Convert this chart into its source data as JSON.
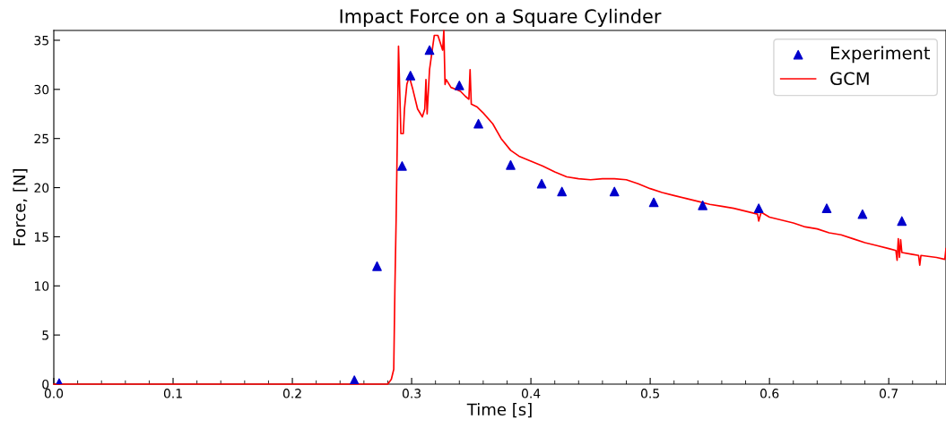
{
  "chart_data": {
    "type": "line",
    "title": "Impact Force on a Square Cylinder",
    "xlabel": "Time [s]",
    "ylabel": "Force, [N]",
    "xlim": [
      0,
      0.748
    ],
    "ylim": [
      0,
      36
    ],
    "xticks": [
      {
        "value": 0,
        "label": "0.0"
      },
      {
        "value": 0.02,
        "label": null
      },
      {
        "value": 0.04,
        "label": null
      },
      {
        "value": 0.06,
        "label": null
      },
      {
        "value": 0.08,
        "label": null
      },
      {
        "value": 0.1,
        "label": "0.1"
      },
      {
        "value": 0.12,
        "label": null
      },
      {
        "value": 0.14,
        "label": null
      },
      {
        "value": 0.16,
        "label": null
      },
      {
        "value": 0.18,
        "label": null
      },
      {
        "value": 0.2,
        "label": "0.2"
      },
      {
        "value": 0.22,
        "label": null
      },
      {
        "value": 0.24,
        "label": null
      },
      {
        "value": 0.26,
        "label": null
      },
      {
        "value": 0.28,
        "label": null
      },
      {
        "value": 0.3,
        "label": "0.3"
      },
      {
        "value": 0.32,
        "label": null
      },
      {
        "value": 0.34,
        "label": null
      },
      {
        "value": 0.36,
        "label": null
      },
      {
        "value": 0.38,
        "label": null
      },
      {
        "value": 0.4,
        "label": "0.4"
      },
      {
        "value": 0.42,
        "label": null
      },
      {
        "value": 0.44,
        "label": null
      },
      {
        "value": 0.46,
        "label": null
      },
      {
        "value": 0.48,
        "label": null
      },
      {
        "value": 0.5,
        "label": "0.5"
      },
      {
        "value": 0.52,
        "label": null
      },
      {
        "value": 0.54,
        "label": null
      },
      {
        "value": 0.56,
        "label": null
      },
      {
        "value": 0.58,
        "label": null
      },
      {
        "value": 0.6,
        "label": "0.6"
      },
      {
        "value": 0.62,
        "label": null
      },
      {
        "value": 0.64,
        "label": null
      },
      {
        "value": 0.66,
        "label": null
      },
      {
        "value": 0.68,
        "label": null
      },
      {
        "value": 0.7,
        "label": "0.7"
      },
      {
        "value": 0.72,
        "label": null
      },
      {
        "value": 0.74,
        "label": null
      }
    ],
    "yticks": [
      0,
      5,
      10,
      15,
      20,
      25,
      30,
      35
    ],
    "grid": false,
    "legend": "top right",
    "series": [
      {
        "name": "Experiment",
        "type": "scatter",
        "marker": "triangle",
        "color": "#0000cc",
        "x": [
          0.0045,
          0.252,
          0.271,
          0.292,
          0.299,
          0.315,
          0.34,
          0.356,
          0.383,
          0.409,
          0.426,
          0.47,
          0.503,
          0.544,
          0.591,
          0.648,
          0.678,
          0.711
        ],
        "values": [
          0.1,
          0.4,
          12.0,
          22.2,
          31.4,
          34.0,
          30.4,
          26.5,
          22.3,
          20.4,
          19.6,
          19.6,
          18.5,
          18.2,
          17.9,
          17.9,
          17.3,
          16.6
        ]
      },
      {
        "name": "GCM",
        "type": "line",
        "marker": "none",
        "line_style": "solid",
        "color": "#ff0000",
        "x": [
          0,
          0.05,
          0.1,
          0.15,
          0.2,
          0.25,
          0.28,
          0.283,
          0.285,
          0.286,
          0.287,
          0.288,
          0.289,
          0.291,
          0.293,
          0.294,
          0.296,
          0.298,
          0.301,
          0.305,
          0.309,
          0.311,
          0.312,
          0.313,
          0.315,
          0.319,
          0.322,
          0.326,
          0.327,
          0.328,
          0.329,
          0.333,
          0.337,
          0.341,
          0.345,
          0.348,
          0.349,
          0.35,
          0.355,
          0.36,
          0.368,
          0.375,
          0.383,
          0.39,
          0.4,
          0.41,
          0.42,
          0.43,
          0.44,
          0.45,
          0.46,
          0.47,
          0.48,
          0.49,
          0.5,
          0.51,
          0.52,
          0.53,
          0.54,
          0.55,
          0.56,
          0.57,
          0.58,
          0.59,
          0.591,
          0.593,
          0.6,
          0.61,
          0.62,
          0.63,
          0.64,
          0.65,
          0.66,
          0.67,
          0.68,
          0.69,
          0.7,
          0.706,
          0.707,
          0.708,
          0.709,
          0.71,
          0.711,
          0.72,
          0.725,
          0.726,
          0.727,
          0.74,
          0.747,
          0.748
        ],
        "values": [
          0,
          0,
          0,
          0,
          0,
          0,
          0,
          0.5,
          1.5,
          10,
          16.7,
          25,
          34.4,
          25.5,
          25.5,
          28,
          30.5,
          31.3,
          30,
          28,
          27.2,
          28,
          31,
          27.5,
          32,
          35.5,
          35.5,
          34,
          36,
          30.5,
          31,
          30.2,
          30,
          29.8,
          29.3,
          29.0,
          32.0,
          28.5,
          28.2,
          27.6,
          26.5,
          25,
          23.8,
          23.2,
          22.7,
          22.2,
          21.6,
          21.1,
          20.9,
          20.8,
          20.9,
          20.9,
          20.8,
          20.4,
          19.9,
          19.5,
          19.2,
          18.9,
          18.6,
          18.3,
          18.1,
          17.9,
          17.6,
          17.3,
          16.6,
          17.5,
          17.0,
          16.7,
          16.4,
          16.0,
          15.8,
          15.4,
          15.2,
          14.8,
          14.4,
          14.1,
          13.8,
          13.6,
          12.6,
          14.8,
          12.9,
          14.7,
          13.4,
          13.2,
          13.1,
          12.1,
          13.1,
          12.9,
          12.7,
          13.8
        ]
      }
    ]
  }
}
